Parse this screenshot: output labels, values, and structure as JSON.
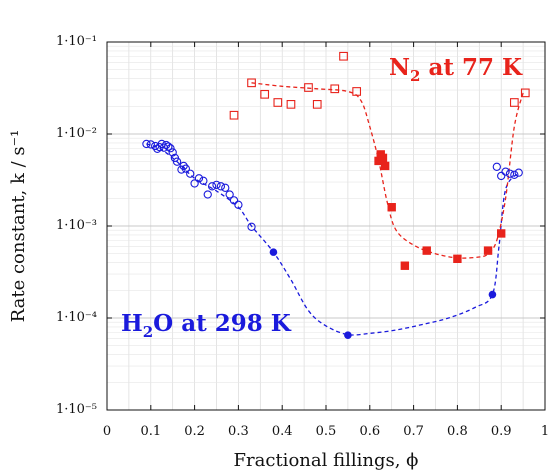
{
  "chart_data": {
    "type": "scatter",
    "title": "",
    "xlabel": "Fractional fillings, ϕ",
    "ylabel": "Rate constant, k / s⁻¹",
    "xlim": [
      0,
      1
    ],
    "ylim": [
      1e-05,
      0.1
    ],
    "yscale": "log",
    "grid": true,
    "x_ticks": [
      0,
      0.1,
      0.2,
      0.3,
      0.4,
      0.5,
      0.6,
      0.7,
      0.8,
      0.9,
      1
    ],
    "x_tick_labels": [
      "0",
      "0.1",
      "0.2",
      "0.3",
      "0.4",
      "0.5",
      "0.6",
      "0.7",
      "0.8",
      "0.9",
      "1"
    ],
    "y_ticks": [
      1e-05,
      0.0001,
      0.001,
      0.01,
      0.1
    ],
    "y_tick_labels": [
      "1·10⁻⁵",
      "1·10⁻⁴",
      "1·10⁻³",
      "1·10⁻²",
      "1·10⁻¹"
    ],
    "series": [
      {
        "name": "H₂O at 298 K",
        "color": "#1a1adc",
        "marker": "open-circle",
        "x": [
          0.09,
          0.1,
          0.11,
          0.115,
          0.12,
          0.125,
          0.13,
          0.135,
          0.14,
          0.145,
          0.15,
          0.155,
          0.16,
          0.17,
          0.175,
          0.18,
          0.19,
          0.2,
          0.21,
          0.22,
          0.23,
          0.24,
          0.25,
          0.26,
          0.27,
          0.28,
          0.29,
          0.3,
          0.33,
          0.89,
          0.9,
          0.91,
          0.92,
          0.93,
          0.94
        ],
        "y": [
          0.0078,
          0.0077,
          0.0074,
          0.0069,
          0.0072,
          0.0078,
          0.0071,
          0.0076,
          0.0073,
          0.007,
          0.0063,
          0.0055,
          0.005,
          0.0041,
          0.0045,
          0.0042,
          0.0037,
          0.0029,
          0.0033,
          0.0031,
          0.0022,
          0.0027,
          0.0028,
          0.0027,
          0.0026,
          0.0022,
          0.0019,
          0.0017,
          0.00098,
          0.0044,
          0.0035,
          0.0039,
          0.0037,
          0.0036,
          0.0038
        ]
      },
      {
        "name": "H₂O at 298 K (filled)",
        "color": "#1a1adc",
        "marker": "filled-circle",
        "x": [
          0.38,
          0.55,
          0.88
        ],
        "y": [
          0.00052,
          6.5e-05,
          0.00018
        ]
      },
      {
        "name": "N₂ at 77 K",
        "color": "#e8231b",
        "marker": "open-square",
        "x": [
          0.29,
          0.33,
          0.36,
          0.39,
          0.42,
          0.46,
          0.48,
          0.52,
          0.54,
          0.57,
          0.93,
          0.955
        ],
        "y": [
          0.016,
          0.036,
          0.027,
          0.022,
          0.021,
          0.032,
          0.021,
          0.031,
          0.07,
          0.029,
          0.022,
          0.028
        ]
      },
      {
        "name": "N₂ at 77 K (filled)",
        "color": "#e8231b",
        "marker": "filled-square",
        "x": [
          0.62,
          0.625,
          0.63,
          0.635,
          0.65,
          0.68,
          0.73,
          0.8,
          0.87,
          0.9
        ],
        "y": [
          0.0051,
          0.006,
          0.0055,
          0.0045,
          0.0016,
          0.00037,
          0.00054,
          0.00044,
          0.00054,
          0.00083
        ]
      }
    ],
    "fit_curves": [
      {
        "color": "#1a1adc",
        "x": [
          0.09,
          0.12,
          0.16,
          0.2,
          0.25,
          0.3,
          0.33,
          0.38,
          0.42,
          0.46,
          0.5,
          0.55,
          0.6,
          0.66,
          0.72,
          0.78,
          0.84,
          0.88,
          0.895,
          0.91,
          0.94
        ],
        "y": [
          0.0078,
          0.007,
          0.005,
          0.0033,
          0.0024,
          0.0016,
          0.001,
          0.00052,
          0.00026,
          0.00012,
          8.2e-05,
          6.6e-05,
          6.8e-05,
          7.4e-05,
          8.5e-05,
          0.0001,
          0.00013,
          0.00018,
          0.0006,
          0.0025,
          0.0038
        ]
      },
      {
        "color": "#e8231b",
        "x": [
          0.33,
          0.4,
          0.48,
          0.55,
          0.58,
          0.6,
          0.62,
          0.64,
          0.66,
          0.7,
          0.75,
          0.8,
          0.85,
          0.87,
          0.89,
          0.91,
          0.93,
          0.95
        ],
        "y": [
          0.036,
          0.033,
          0.031,
          0.029,
          0.023,
          0.012,
          0.0052,
          0.0018,
          0.0009,
          0.00062,
          0.0005,
          0.00045,
          0.00046,
          0.0005,
          0.0007,
          0.002,
          0.012,
          0.028
        ]
      }
    ],
    "annotations": [
      {
        "series": "N₂ at 77 K",
        "color": "#e8231b",
        "main": "N",
        "sub": "2",
        "rest": " at 77 K"
      },
      {
        "series": "H₂O at 298 K",
        "color": "#1a1adc",
        "main": "H",
        "sub": "2",
        "rest": "O at 298 K"
      }
    ]
  }
}
